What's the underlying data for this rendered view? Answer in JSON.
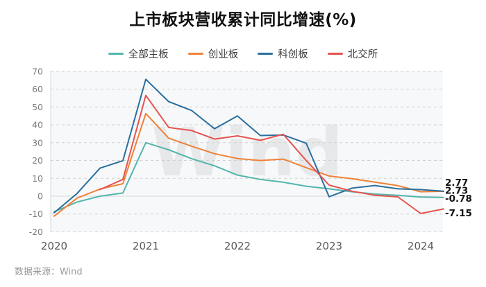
{
  "title": "上市板块营收累计同比增速(%)",
  "source_note": "数据来源：Wind",
  "watermark": "Wind",
  "chart_data": {
    "type": "line",
    "x": [
      "2020Q1",
      "2020Q2",
      "2020Q3",
      "2020Q4",
      "2021Q1",
      "2021Q2",
      "2021Q3",
      "2021Q4",
      "2022Q1",
      "2022Q2",
      "2022Q3",
      "2022Q4",
      "2023Q1",
      "2023Q2",
      "2023Q3",
      "2023Q4",
      "2024Q1",
      "2024Q2"
    ],
    "year_ticks": [
      "2020",
      "2021",
      "2022",
      "2023",
      "2024"
    ],
    "yticks": [
      70,
      60,
      50,
      40,
      30,
      20,
      10,
      0,
      -10,
      -20
    ],
    "ylim": [
      -20,
      70
    ],
    "grid": "horizontal dashed, solid zero line, solid left axis",
    "legend_position": "top",
    "series": [
      {
        "id": "main-board",
        "name": "全部主板",
        "color": "#53b5ad",
        "end_label": "-0.78",
        "values": [
          -8.7,
          -3.3,
          0.0,
          1.8,
          30.0,
          26.0,
          21.0,
          17.0,
          11.8,
          9.4,
          7.8,
          5.6,
          4.1,
          2.5,
          1.2,
          0.5,
          -0.5,
          -0.78
        ]
      },
      {
        "id": "chinext",
        "name": "创业板",
        "color": "#ef8136",
        "end_label": "2.73",
        "values": [
          -11.2,
          -1.1,
          4.0,
          7.0,
          46.3,
          32.5,
          28.0,
          23.8,
          21.1,
          20.0,
          20.8,
          16.0,
          11.3,
          9.8,
          7.9,
          5.9,
          2.5,
          2.73
        ]
      },
      {
        "id": "star-market",
        "name": "科创板",
        "color": "#2a6f9f",
        "end_label": "2.77",
        "values": [
          -9.3,
          1.5,
          15.7,
          19.9,
          65.5,
          53.0,
          48.0,
          37.8,
          45.0,
          34.0,
          34.3,
          29.7,
          -0.3,
          4.5,
          6.0,
          4.1,
          3.7,
          2.77
        ]
      },
      {
        "id": "bse",
        "name": "北交所",
        "color": "#e5534f",
        "end_label": "-7.15",
        "values": [
          null,
          null,
          3.7,
          9.4,
          56.5,
          38.5,
          36.8,
          32.0,
          33.8,
          31.3,
          34.7,
          20.0,
          6.2,
          2.8,
          0.5,
          -0.4,
          -9.7,
          -7.15
        ]
      }
    ]
  }
}
